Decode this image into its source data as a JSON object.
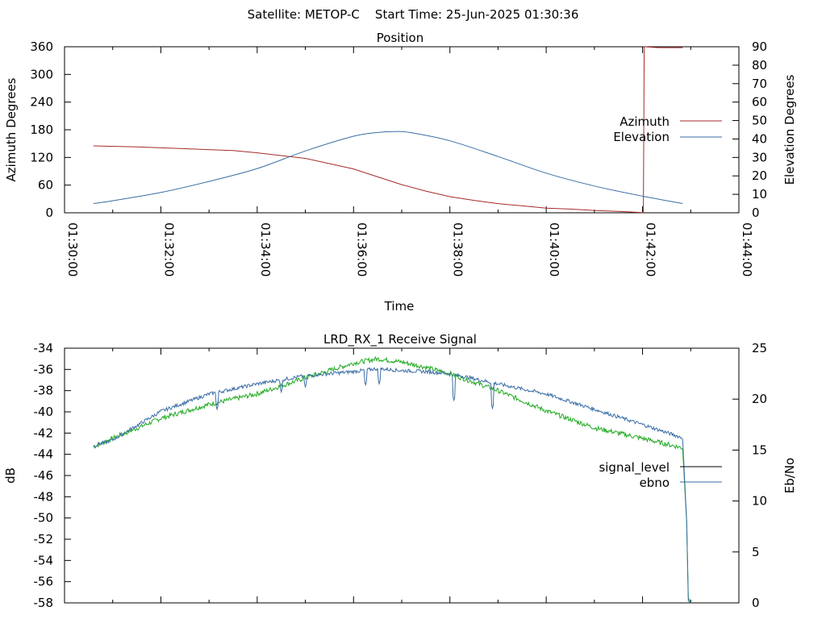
{
  "header": {
    "text": "Satellite: METOP-C    Start Time: 25-Jun-2025 01:30:36"
  },
  "chart_data": [
    {
      "type": "line",
      "title": "Position",
      "xlabel": "Time",
      "ylabel": "Azimuth Degrees",
      "y2label": "Elevation Degrees",
      "xlim": [
        "01:30:00",
        "01:44:00"
      ],
      "xticks": [
        "01:30:00",
        "01:32:00",
        "01:34:00",
        "01:36:00",
        "01:38:00",
        "01:40:00",
        "01:42:00",
        "01:44:00"
      ],
      "ylim": [
        0,
        360
      ],
      "yticks": [
        0,
        60,
        120,
        180,
        240,
        300,
        360
      ],
      "y2lim": [
        0,
        90
      ],
      "y2ticks": [
        0,
        10,
        20,
        30,
        40,
        50,
        60,
        70,
        80,
        90
      ],
      "legend_position": "right",
      "series": [
        {
          "name": "Azimuth",
          "color": "#a62a2a",
          "axis": "y",
          "x": [
            "01:30:36",
            "01:31:30",
            "01:32:30",
            "01:33:30",
            "01:34:00",
            "01:35:00",
            "01:36:00",
            "01:36:30",
            "01:37:00",
            "01:37:30",
            "01:38:00",
            "01:38:30",
            "01:39:00",
            "01:39:30",
            "01:40:00",
            "01:40:30",
            "01:41:00",
            "01:41:30",
            "01:42:00",
            "01:42:01",
            "01:42:02",
            "01:42:20",
            "01:42:50"
          ],
          "values": [
            145,
            143,
            139,
            135,
            130,
            118,
            95,
            78,
            61,
            47,
            35,
            27,
            20,
            15,
            10,
            8,
            5,
            3,
            0.5,
            0,
            360,
            358,
            358
          ]
        },
        {
          "name": "Elevation",
          "color": "#3a6ea5",
          "axis": "y2",
          "x": [
            "01:30:36",
            "01:31:00",
            "01:32:00",
            "01:33:00",
            "01:34:00",
            "01:35:00",
            "01:36:00",
            "01:36:30",
            "01:36:50",
            "01:37:10",
            "01:38:00",
            "01:39:00",
            "01:40:00",
            "01:41:00",
            "01:42:00",
            "01:42:50"
          ],
          "values": [
            5,
            6.5,
            11,
            17,
            24,
            33.5,
            41.5,
            43.5,
            44,
            43.5,
            39,
            30.5,
            21.5,
            14.5,
            9,
            5
          ]
        }
      ]
    },
    {
      "type": "line",
      "title": "LRD_RX_1 Receive Signal",
      "ylabel": "dB",
      "y2label": "Eb/No",
      "xlim": [
        "01:30:00",
        "01:44:00"
      ],
      "ylim": [
        -58,
        -34
      ],
      "yticks": [
        -58,
        -56,
        -54,
        -52,
        -50,
        -48,
        -46,
        -44,
        -42,
        -40,
        -38,
        -36,
        -34
      ],
      "y2lim": [
        0,
        25
      ],
      "y2ticks": [
        0,
        5,
        10,
        15,
        20,
        25
      ],
      "legend_position": "right",
      "series": [
        {
          "name": "signal_level",
          "color": "#22aa22",
          "axis": "y",
          "x": [
            "01:30:36",
            "01:31:00",
            "01:32:00",
            "01:33:00",
            "01:34:00",
            "01:35:00",
            "01:36:00",
            "01:36:30",
            "01:37:00",
            "01:37:30",
            "01:38:00",
            "01:39:00",
            "01:40:00",
            "01:41:00",
            "01:42:00",
            "01:42:50",
            "01:42:55",
            "01:42:57",
            "01:43:00"
          ],
          "values": [
            -43.3,
            -42.5,
            -40.6,
            -39.3,
            -38.3,
            -36.8,
            -35.4,
            -35.0,
            -35.3,
            -35.8,
            -36.4,
            -38.0,
            -39.9,
            -41.5,
            -42.5,
            -43.4,
            -50.5,
            -57.5,
            -58.0
          ]
        },
        {
          "name": "ebno",
          "color": "#3a6ea5",
          "axis": "y2",
          "x": [
            "01:30:36",
            "01:31:00",
            "01:32:00",
            "01:33:00",
            "01:34:00",
            "01:35:00",
            "01:36:00",
            "01:36:30",
            "01:37:00",
            "01:37:30",
            "01:38:00",
            "01:39:00",
            "01:40:00",
            "01:41:00",
            "01:42:00",
            "01:42:50",
            "01:42:55",
            "01:42:57",
            "01:43:00"
          ],
          "values": [
            15.4,
            16.0,
            18.8,
            20.5,
            21.5,
            22.3,
            22.7,
            23.0,
            22.8,
            22.7,
            22.5,
            21.5,
            20.5,
            19.0,
            17.5,
            16.2,
            8.0,
            0.2,
            0.0
          ],
          "dips": [
            {
              "x": "01:33:10",
              "value": 19.0
            },
            {
              "x": "01:34:30",
              "value": 20.7
            },
            {
              "x": "01:35:00",
              "value": 21.2
            },
            {
              "x": "01:36:15",
              "value": 21.4
            },
            {
              "x": "01:36:32",
              "value": 21.5
            },
            {
              "x": "01:38:05",
              "value": 19.9
            },
            {
              "x": "01:38:53",
              "value": 19.1
            }
          ]
        }
      ]
    }
  ]
}
